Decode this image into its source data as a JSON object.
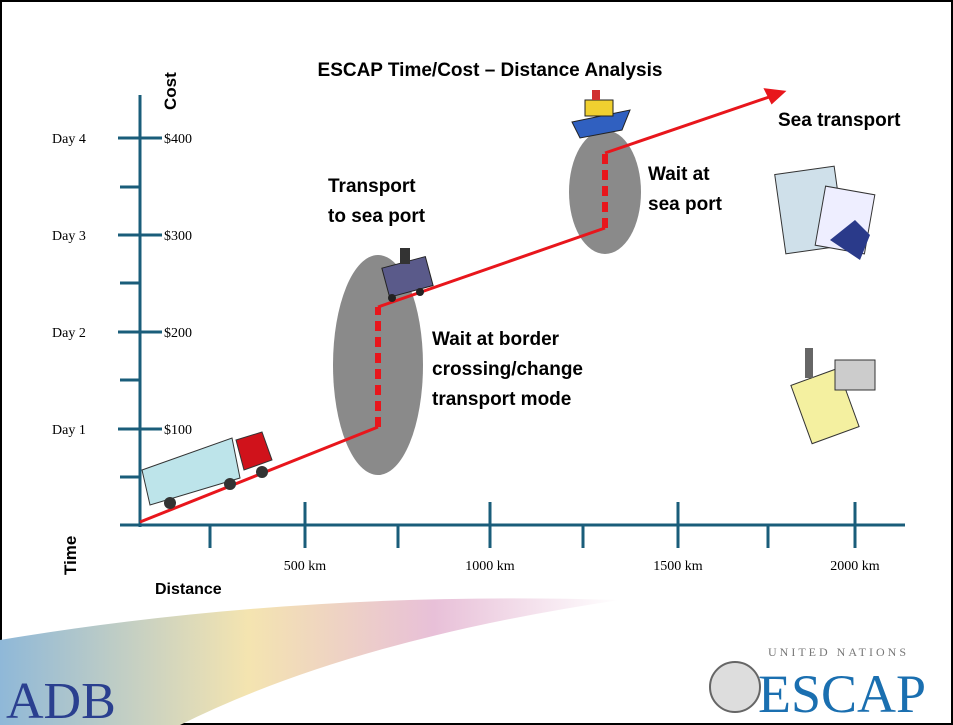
{
  "title": "ESCAP Time/Cost – Distance Analysis",
  "y_axis": {
    "cost_label": "Cost",
    "time_label": "Time",
    "ticks": [
      {
        "time": "Day 4",
        "cost": "$400"
      },
      {
        "time": "Day 3",
        "cost": "$300"
      },
      {
        "time": "Day 2",
        "cost": "$200"
      },
      {
        "time": "Day 1",
        "cost": "$100"
      }
    ]
  },
  "x_axis": {
    "label": "Distance",
    "ticks": [
      "500 km",
      "1000 km",
      "1500 km",
      "2000 km"
    ]
  },
  "annotations": {
    "transport": [
      "Transport",
      "to sea port"
    ],
    "wait_border": [
      "Wait at border",
      "crossing/change",
      "transport mode"
    ],
    "wait_port": [
      "Wait at",
      "sea port"
    ],
    "sea": "Sea transport"
  },
  "logos": {
    "adb": "ADB",
    "un": "UNITED NATIONS",
    "escap": "ESCAP"
  }
}
